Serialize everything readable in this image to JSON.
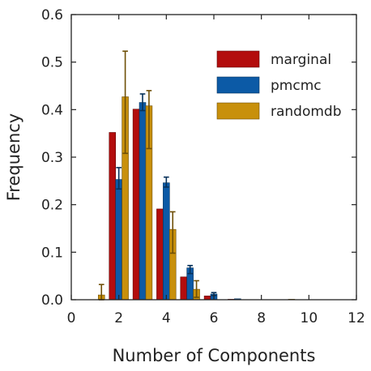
{
  "chart_data": {
    "type": "bar",
    "xlabel": "Number of Components",
    "ylabel": "Frequency",
    "xlim": [
      0,
      12
    ],
    "ylim": [
      0,
      0.6
    ],
    "xticks": [
      "0",
      "2",
      "4",
      "6",
      "8",
      "10",
      "12"
    ],
    "yticks": [
      "0.0",
      "0.1",
      "0.2",
      "0.3",
      "0.4",
      "0.5",
      "0.6"
    ],
    "grid": false,
    "legend_position": "top-right",
    "categories": [
      1,
      2,
      3,
      4,
      5,
      6,
      7,
      8,
      9
    ],
    "series": [
      {
        "name": "marginal",
        "color": "#b30d0d",
        "values": [
          0.0,
          0.352,
          0.401,
          0.191,
          0.048,
          0.008,
          0.001,
          0.0,
          0.0
        ],
        "errors": [
          null,
          null,
          null,
          null,
          null,
          null,
          null,
          null,
          null
        ]
      },
      {
        "name": "pmcmc",
        "color": "#0c5aa6",
        "values": [
          0.0,
          0.253,
          0.415,
          0.246,
          0.067,
          0.012,
          0.002,
          0.0,
          0.0
        ],
        "errors": [
          null,
          [
            0.233,
            0.278
          ],
          [
            0.398,
            0.433
          ],
          [
            0.237,
            0.258
          ],
          [
            0.055,
            0.072
          ],
          [
            0.009,
            0.015
          ],
          null,
          null,
          null
        ]
      },
      {
        "name": "randomdb",
        "color": "#c8900c",
        "values": [
          0.01,
          0.427,
          0.408,
          0.148,
          0.022,
          0.0,
          0.0,
          0.0,
          0.001
        ],
        "errors": [
          [
            0.0,
            0.032
          ],
          [
            0.308,
            0.523
          ],
          [
            0.318,
            0.44
          ],
          [
            0.098,
            0.185
          ],
          [
            0.005,
            0.04
          ],
          null,
          null,
          null,
          null
        ]
      }
    ]
  }
}
